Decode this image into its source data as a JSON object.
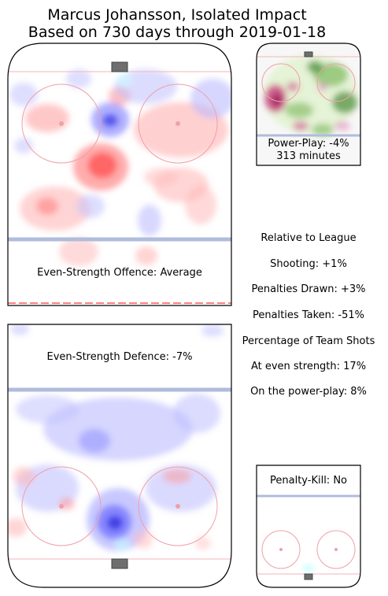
{
  "chart_data": {
    "type": "heatmap",
    "title_line1": "Marcus Johansson, Isolated Impact",
    "title_line2": "Based on 730 days through 2019-01-18",
    "panels": {
      "offence": {
        "label": "Even-Strength Offence: Average"
      },
      "defence": {
        "label": "Even-Strength Defence: -7%"
      },
      "powerplay": {
        "label_line1": "Power-Play: -4%",
        "label_line2": "313 minutes"
      },
      "penaltykill": {
        "label": "Penalty-Kill: No"
      }
    },
    "relative_to_league": {
      "heading": "Relative to League",
      "shooting": "Shooting: +1%",
      "penalties_drawn": "Penalties Drawn: +3%",
      "penalties_taken": "Penalties Taken: -51%"
    },
    "team_shots": {
      "heading": "Percentage of Team Shots",
      "even_strength": "At even strength: 17%",
      "power_play": "On the power-play: 8%"
    },
    "colors": {
      "positive": "#ff0000",
      "negative": "#0000ff",
      "pp_positive": "#2e7d1a",
      "pp_negative": "#b0005a",
      "blue_line": "#b0bcdc",
      "faceoff_circle": "#f0a0a8",
      "net": "#6e6e6e"
    }
  }
}
